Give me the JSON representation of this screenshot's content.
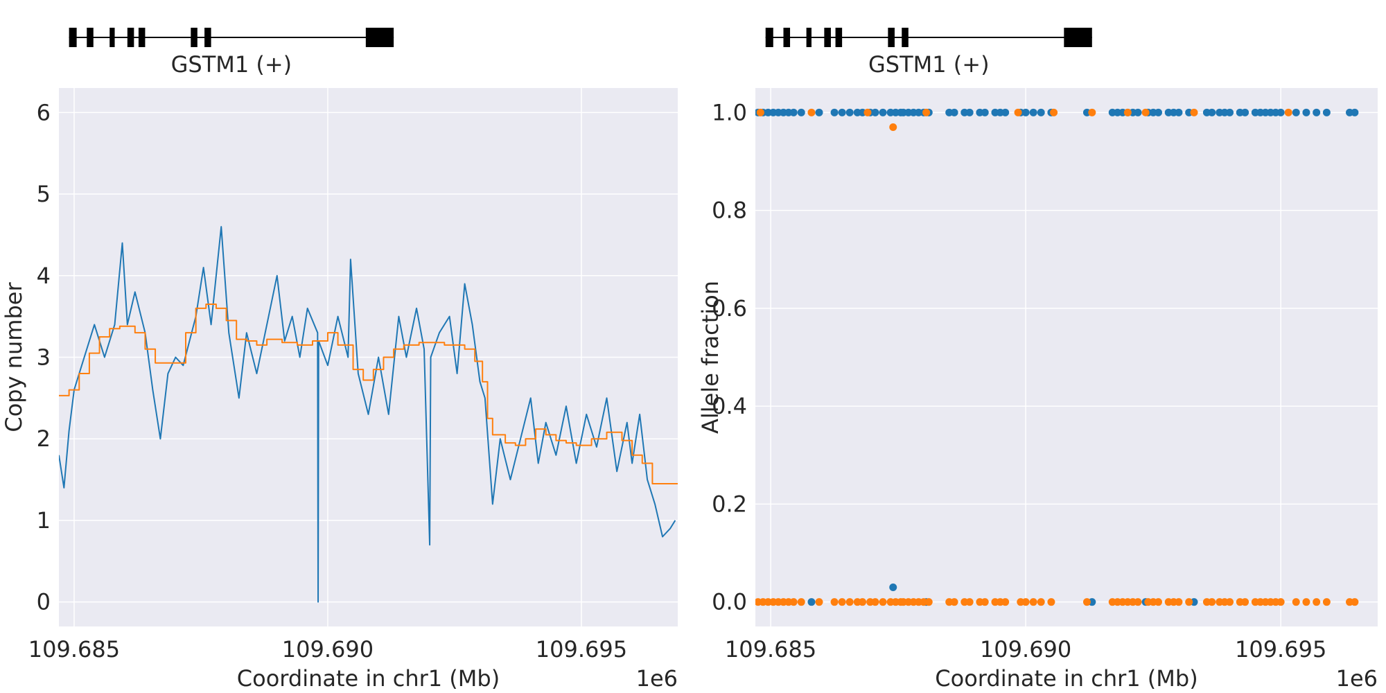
{
  "colors": {
    "background": "#eaeaf2",
    "grid": "#ffffff",
    "copy_number_raw": "#1f77b4",
    "copy_number_segment": "#ff7f0e",
    "allele_series_a": "#1f77b4",
    "allele_series_b": "#ff7f0e",
    "gene_model": "#000000"
  },
  "chart_data": [
    {
      "type": "line",
      "gene": {
        "label": "GSTM1 (+)",
        "exons": [
          [
            109684900,
            109685050
          ],
          [
            109685250,
            109685380
          ],
          [
            109685700,
            109685800
          ],
          [
            109686050,
            109686180
          ],
          [
            109686270,
            109686400
          ],
          [
            109687300,
            109687430
          ],
          [
            109687570,
            109687700
          ],
          [
            109690750,
            109691300
          ]
        ]
      },
      "xlabel": "Coordinate in chr1 (Mb)",
      "ylabel": "Copy number",
      "x_offset_text": "1e6",
      "xlim": [
        109684700,
        109696900
      ],
      "ylim": [
        -0.3,
        6.3
      ],
      "xticks": [
        109685000,
        109690000,
        109695000
      ],
      "xtick_labels": [
        "109.685",
        "109.690",
        "109.695"
      ],
      "yticks": [
        0,
        1,
        2,
        3,
        4,
        5,
        6
      ],
      "ytick_labels": [
        "0",
        "1",
        "2",
        "3",
        "4",
        "5",
        "6"
      ],
      "grid": true,
      "series": [
        {
          "values": [
            [
              109684700,
              1.8
            ],
            [
              109684800,
              1.4
            ],
            [
              109684900,
              2.1
            ],
            [
              109685000,
              2.6
            ],
            [
              109685200,
              3.0
            ],
            [
              109685400,
              3.4
            ],
            [
              109685600,
              3.0
            ],
            [
              109685800,
              3.4
            ],
            [
              109685950,
              4.4
            ],
            [
              109686050,
              3.4
            ],
            [
              109686200,
              3.8
            ],
            [
              109686400,
              3.3
            ],
            [
              109686550,
              2.6
            ],
            [
              109686700,
              2.0
            ],
            [
              109686850,
              2.8
            ],
            [
              109687000,
              3.0
            ],
            [
              109687150,
              2.9
            ],
            [
              109687400,
              3.5
            ],
            [
              109687550,
              4.1
            ],
            [
              109687700,
              3.4
            ],
            [
              109687900,
              4.6
            ],
            [
              109688050,
              3.3
            ],
            [
              109688250,
              2.5
            ],
            [
              109688400,
              3.3
            ],
            [
              109688600,
              2.8
            ],
            [
              109688800,
              3.4
            ],
            [
              109689000,
              4.0
            ],
            [
              109689150,
              3.2
            ],
            [
              109689300,
              3.5
            ],
            [
              109689450,
              3.0
            ],
            [
              109689600,
              3.6
            ],
            [
              109689800,
              3.3
            ],
            [
              109689810,
              0.0
            ],
            [
              109689820,
              3.2
            ],
            [
              109690000,
              2.9
            ],
            [
              109690200,
              3.5
            ],
            [
              109690400,
              3.0
            ],
            [
              109690450,
              4.2
            ],
            [
              109690600,
              2.8
            ],
            [
              109690800,
              2.3
            ],
            [
              109691000,
              3.0
            ],
            [
              109691200,
              2.3
            ],
            [
              109691400,
              3.5
            ],
            [
              109691550,
              3.0
            ],
            [
              109691750,
              3.6
            ],
            [
              109691900,
              3.1
            ],
            [
              109692010,
              0.7
            ],
            [
              109692030,
              3.0
            ],
            [
              109692200,
              3.3
            ],
            [
              109692400,
              3.5
            ],
            [
              109692550,
              2.8
            ],
            [
              109692700,
              3.9
            ],
            [
              109692850,
              3.4
            ],
            [
              109693000,
              2.7
            ],
            [
              109693100,
              2.5
            ],
            [
              109693250,
              1.2
            ],
            [
              109693400,
              2.0
            ],
            [
              109693600,
              1.5
            ],
            [
              109693800,
              2.0
            ],
            [
              109694000,
              2.5
            ],
            [
              109694150,
              1.7
            ],
            [
              109694300,
              2.2
            ],
            [
              109694500,
              1.8
            ],
            [
              109694700,
              2.4
            ],
            [
              109694900,
              1.7
            ],
            [
              109695100,
              2.3
            ],
            [
              109695300,
              1.9
            ],
            [
              109695500,
              2.5
            ],
            [
              109695700,
              1.6
            ],
            [
              109695900,
              2.2
            ],
            [
              109696000,
              1.7
            ],
            [
              109696150,
              2.3
            ],
            [
              109696300,
              1.5
            ],
            [
              109696450,
              1.2
            ],
            [
              109696600,
              0.8
            ],
            [
              109696750,
              0.9
            ],
            [
              109696850,
              1.0
            ]
          ]
        },
        {
          "step": true,
          "values": [
            [
              109684700,
              2.53
            ],
            [
              109684900,
              2.6
            ],
            [
              109685100,
              2.8
            ],
            [
              109685300,
              3.05
            ],
            [
              109685500,
              3.25
            ],
            [
              109685700,
              3.35
            ],
            [
              109685900,
              3.38
            ],
            [
              109686200,
              3.3
            ],
            [
              109686400,
              3.1
            ],
            [
              109686600,
              2.93
            ],
            [
              109686800,
              2.93
            ],
            [
              109687000,
              2.93
            ],
            [
              109687200,
              3.3
            ],
            [
              109687400,
              3.6
            ],
            [
              109687600,
              3.65
            ],
            [
              109687800,
              3.6
            ],
            [
              109688000,
              3.45
            ],
            [
              109688200,
              3.22
            ],
            [
              109688400,
              3.2
            ],
            [
              109688600,
              3.15
            ],
            [
              109688800,
              3.22
            ],
            [
              109689100,
              3.18
            ],
            [
              109689400,
              3.15
            ],
            [
              109689700,
              3.2
            ],
            [
              109690000,
              3.3
            ],
            [
              109690200,
              3.15
            ],
            [
              109690500,
              2.85
            ],
            [
              109690700,
              2.72
            ],
            [
              109690900,
              2.85
            ],
            [
              109691100,
              3.0
            ],
            [
              109691300,
              3.1
            ],
            [
              109691500,
              3.15
            ],
            [
              109691800,
              3.18
            ],
            [
              109692300,
              3.15
            ],
            [
              109692700,
              3.1
            ],
            [
              109692900,
              2.95
            ],
            [
              109693050,
              2.7
            ],
            [
              109693150,
              2.25
            ],
            [
              109693250,
              2.05
            ],
            [
              109693500,
              1.95
            ],
            [
              109693700,
              1.92
            ],
            [
              109693900,
              2.0
            ],
            [
              109694100,
              2.12
            ],
            [
              109694300,
              2.05
            ],
            [
              109694500,
              1.98
            ],
            [
              109694700,
              1.95
            ],
            [
              109694900,
              1.92
            ],
            [
              109695200,
              2.0
            ],
            [
              109695500,
              2.08
            ],
            [
              109695800,
              1.98
            ],
            [
              109696000,
              1.8
            ],
            [
              109696200,
              1.7
            ],
            [
              109696400,
              1.45
            ],
            [
              109696900,
              1.45
            ]
          ]
        }
      ]
    },
    {
      "type": "scatter",
      "gene": {
        "label": "GSTM1 (+)",
        "exons": [
          [
            109684900,
            109685050
          ],
          [
            109685250,
            109685380
          ],
          [
            109685700,
            109685800
          ],
          [
            109686050,
            109686180
          ],
          [
            109686270,
            109686400
          ],
          [
            109687300,
            109687430
          ],
          [
            109687570,
            109687700
          ],
          [
            109690750,
            109691300
          ]
        ]
      },
      "xlabel": "Coordinate in chr1 (Mb)",
      "ylabel": "Allele fraction",
      "x_offset_text": "1e6",
      "xlim": [
        109684700,
        109696900
      ],
      "ylim": [
        -0.05,
        1.05
      ],
      "xticks": [
        109685000,
        109690000,
        109695000
      ],
      "xtick_labels": [
        "109.685",
        "109.690",
        "109.695"
      ],
      "yticks": [
        0.0,
        0.2,
        0.4,
        0.6,
        0.8,
        1.0
      ],
      "ytick_labels": [
        "0.0",
        "0.2",
        "0.4",
        "0.6",
        "0.8",
        "1.0"
      ],
      "grid": true,
      "series": [
        {
          "x": [
            109684750,
            109684850,
            109684950,
            109685050,
            109685150,
            109685250,
            109685350,
            109685450,
            109685600,
            109685950,
            109686250,
            109686400,
            109686550,
            109686700,
            109686800,
            109686950,
            109687050,
            109687200,
            109687350,
            109687450,
            109687550,
            109687600,
            109687700,
            109687800,
            109687900,
            109688000,
            109688100,
            109688500,
            109688600,
            109688800,
            109688900,
            109689100,
            109689200,
            109689400,
            109689500,
            109689600,
            109689900,
            109690000,
            109690150,
            109690300,
            109690500,
            109691200,
            109691700,
            109691800,
            109691900,
            109692000,
            109692100,
            109692200,
            109692400,
            109692500,
            109692600,
            109692800,
            109692900,
            109693000,
            109693200,
            109693550,
            109693650,
            109693800,
            109693900,
            109694000,
            109694200,
            109694300,
            109694500,
            109694600,
            109694700,
            109694800,
            109694900,
            109695000,
            109695300,
            109695500,
            109695700,
            109695900,
            109696350,
            109696450,
            109687400,
            109685800,
            109691300,
            109692350,
            109693300,
            109688050
          ],
          "y": [
            1,
            1,
            1,
            1,
            1,
            1,
            1,
            1,
            1,
            1,
            1,
            1,
            1,
            1,
            1,
            1,
            1,
            1,
            1,
            1,
            1,
            1,
            1,
            1,
            1,
            1,
            1,
            1,
            1,
            1,
            1,
            1,
            1,
            1,
            1,
            1,
            1,
            1,
            1,
            1,
            1,
            1,
            1,
            1,
            1,
            1,
            1,
            1,
            1,
            1,
            1,
            1,
            1,
            1,
            1,
            1,
            1,
            1,
            1,
            1,
            1,
            1,
            1,
            1,
            1,
            1,
            1,
            1,
            1,
            1,
            1,
            1,
            1,
            1,
            0.03,
            0,
            0,
            0,
            0,
            0
          ]
        },
        {
          "x": [
            109684750,
            109684850,
            109684950,
            109685050,
            109685150,
            109685250,
            109685350,
            109685450,
            109685600,
            109685950,
            109686250,
            109686400,
            109686550,
            109686700,
            109686800,
            109686950,
            109687050,
            109687200,
            109687350,
            109687450,
            109687550,
            109687600,
            109687700,
            109687800,
            109687900,
            109688000,
            109688100,
            109688500,
            109688600,
            109688800,
            109688900,
            109689100,
            109689200,
            109689400,
            109689500,
            109689600,
            109689900,
            109690000,
            109690150,
            109690300,
            109690500,
            109691200,
            109691700,
            109691800,
            109691900,
            109692000,
            109692100,
            109692200,
            109692400,
            109692500,
            109692600,
            109692800,
            109692900,
            109693000,
            109693200,
            109693550,
            109693650,
            109693800,
            109693900,
            109694000,
            109694200,
            109694300,
            109694500,
            109694600,
            109694700,
            109694800,
            109694900,
            109695000,
            109695300,
            109695500,
            109695700,
            109695900,
            109696350,
            109696450,
            109684800,
            109685800,
            109686900,
            109687400,
            109688050,
            109689850,
            109690550,
            109691300,
            109692000,
            109692350,
            109693300,
            109695150
          ],
          "y": [
            0,
            0,
            0,
            0,
            0,
            0,
            0,
            0,
            0,
            0,
            0,
            0,
            0,
            0,
            0,
            0,
            0,
            0,
            0,
            0,
            0,
            0,
            0,
            0,
            0,
            0,
            0,
            0,
            0,
            0,
            0,
            0,
            0,
            0,
            0,
            0,
            0,
            0,
            0,
            0,
            0,
            0,
            0,
            0,
            0,
            0,
            0,
            0,
            0,
            0,
            0,
            0,
            0,
            0,
            0,
            0,
            0,
            0,
            0,
            0,
            0,
            0,
            0,
            0,
            0,
            0,
            0,
            0,
            0,
            0,
            0,
            0,
            0,
            0,
            1,
            1,
            1,
            0.97,
            1,
            1,
            1,
            1,
            1,
            1,
            1,
            1
          ]
        }
      ]
    }
  ]
}
